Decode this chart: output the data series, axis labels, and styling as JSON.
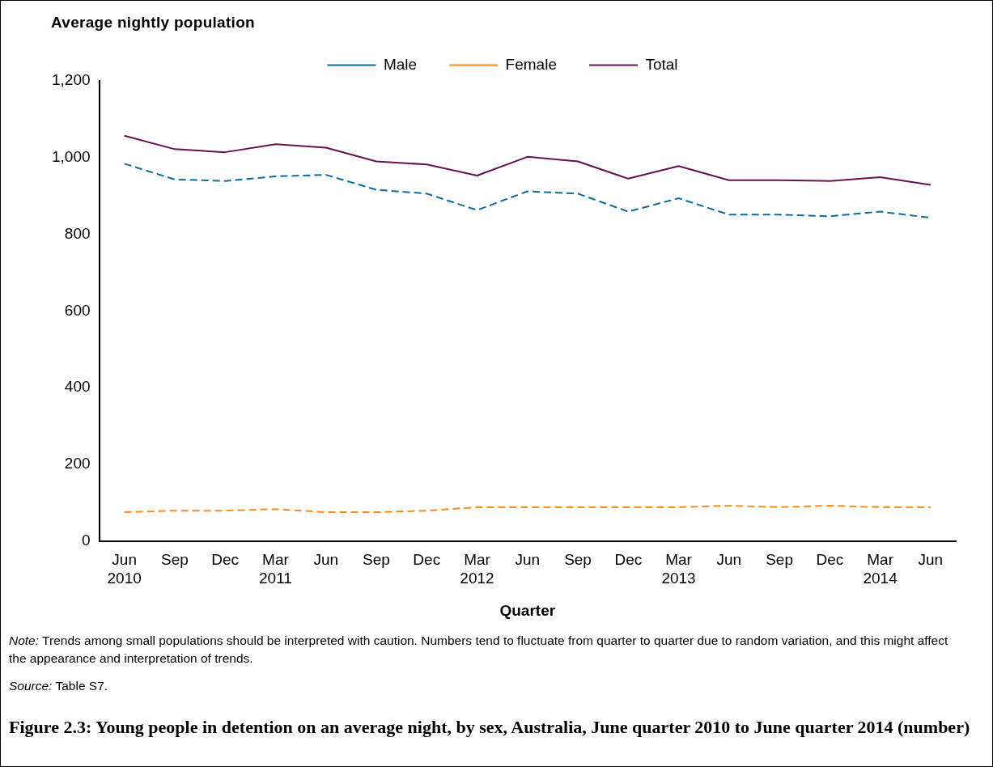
{
  "chart_data": {
    "type": "line",
    "title": "Figure 2.3: Young people in detention on an average night, by sex, Australia, June quarter 2010 to June quarter 2014 (number)",
    "ylabel": "Average nightly population",
    "xlabel": "Quarter",
    "categories": [
      "Jun\n2010",
      "Sep",
      "Dec",
      "Mar\n2011",
      "Jun",
      "Sep",
      "Dec",
      "Mar\n2012",
      "Jun",
      "Sep",
      "Dec",
      "Mar\n2013",
      "Jun",
      "Sep",
      "Dec",
      "Mar\n2014",
      "Jun"
    ],
    "series": [
      {
        "name": "Male",
        "color": "#0e6c9f",
        "line_style": "dashed",
        "values": [
          984,
          943,
          939,
          951,
          955,
          916,
          906,
          863,
          912,
          906,
          859,
          894,
          851,
          851,
          847,
          859,
          843
        ]
      },
      {
        "name": "Female",
        "color": "#ff8c1a",
        "line_style": "dashed",
        "values": [
          75,
          79,
          79,
          83,
          75,
          75,
          79,
          88,
          88,
          88,
          88,
          88,
          92,
          88,
          92,
          88,
          88
        ]
      },
      {
        "name": "Total",
        "color": "#6b0f55",
        "line_style": "solid",
        "values": [
          1057,
          1022,
          1014,
          1035,
          1026,
          990,
          982,
          953,
          1002,
          990,
          945,
          978,
          941,
          941,
          939,
          949,
          929
        ]
      }
    ],
    "ylim": [
      0,
      1200
    ],
    "yticks": [
      0,
      200,
      400,
      600,
      800,
      {
        "value": 1000,
        "label": "1,000"
      },
      {
        "value": 1200,
        "label": "1,200"
      }
    ],
    "grid": false,
    "legend": "top",
    "marker": "none",
    "annotations": [
      "Note: Trends among small populations should be interpreted with caution. Numbers tend to fluctuate from quarter to quarter due to random variation, and this might affect the appearance and interpretation of trends.",
      "Source: Table S7."
    ]
  }
}
